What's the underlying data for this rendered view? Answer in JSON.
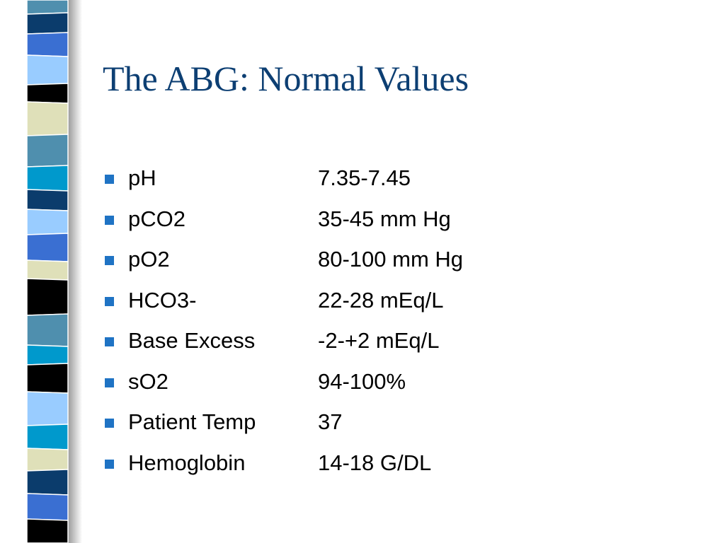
{
  "title": "The ABG: Normal Values",
  "items": [
    {
      "label": "pH",
      "value": "7.35-7.45"
    },
    {
      "label": "pCO2",
      "value": "35-45 mm Hg"
    },
    {
      "label": "pO2",
      "value": "80-100 mm Hg"
    },
    {
      "label": "HCO3-",
      "value": "22-28 mEq/L"
    },
    {
      "label": "Base Excess",
      "value": "-2-+2 mEq/L"
    },
    {
      "label": "sO2",
      "value": "94-100%"
    },
    {
      "label": "Patient Temp",
      "value": "37"
    },
    {
      "label": "Hemoglobin",
      "value": "14-18 G/DL"
    }
  ]
}
